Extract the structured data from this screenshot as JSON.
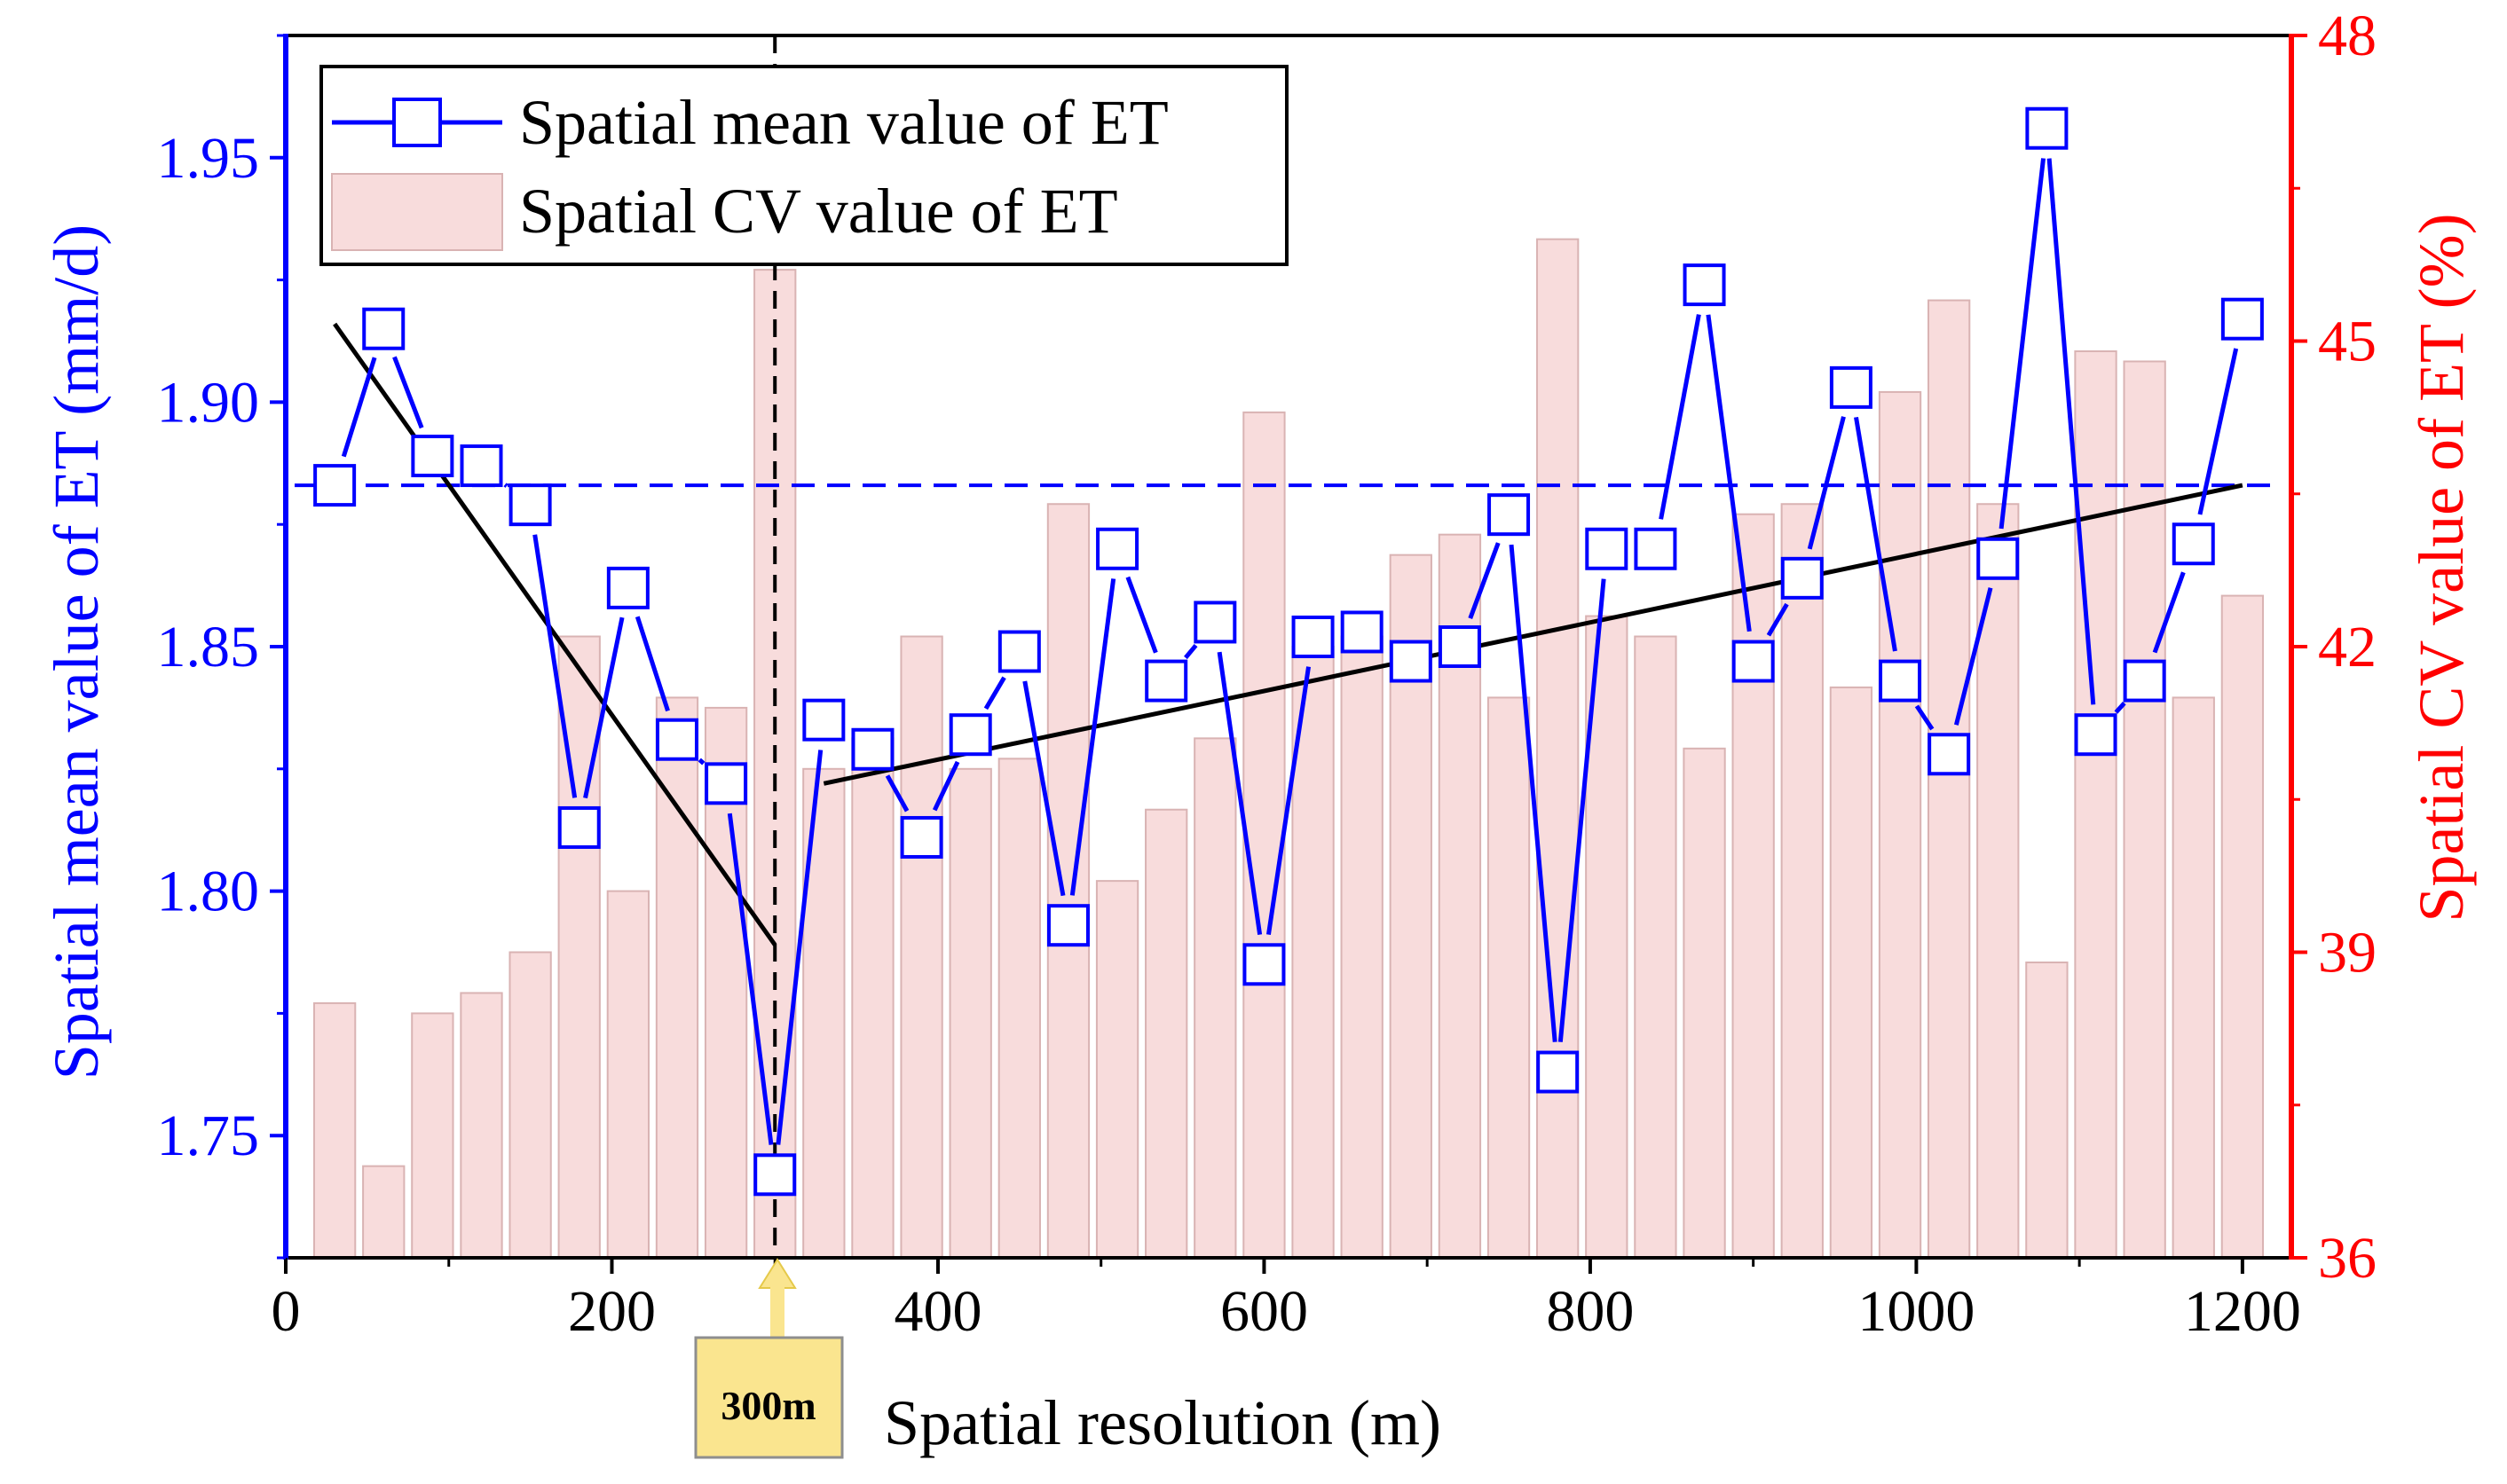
{
  "chart_data": {
    "type": "bar+line",
    "xlabel": "Spatial resolution (m)",
    "ylabel_left": "Spatial mean value of ET (mm/d)",
    "ylabel_right": "Spatial CV value of ET (%)",
    "xlim": [
      0,
      1230
    ],
    "ylim_left": [
      1.725,
      1.975
    ],
    "ylim_right": [
      36,
      48
    ],
    "x_ticks": [
      0,
      200,
      400,
      600,
      800,
      1000,
      1200
    ],
    "y_left_ticks": [
      "1.75",
      "1.80",
      "1.85",
      "1.90",
      "1.95"
    ],
    "y_right_ticks": [
      "36",
      "39",
      "42",
      "45",
      "48"
    ],
    "x": [
      30,
      60,
      90,
      120,
      150,
      180,
      210,
      240,
      270,
      300,
      330,
      360,
      390,
      420,
      450,
      480,
      510,
      540,
      570,
      600,
      630,
      660,
      690,
      720,
      750,
      780,
      810,
      840,
      870,
      900,
      930,
      960,
      990,
      1020,
      1050,
      1080,
      1110,
      1140,
      1170,
      1200
    ],
    "series": [
      {
        "name": "Spatial mean value of ET",
        "axis": "left",
        "type": "line-marker",
        "color": "#0000FF",
        "values": [
          1.883,
          1.915,
          1.889,
          1.887,
          1.879,
          1.813,
          1.862,
          1.831,
          1.822,
          1.742,
          1.835,
          1.829,
          1.811,
          1.832,
          1.849,
          1.793,
          1.87,
          1.843,
          1.855,
          1.785,
          1.852,
          1.853,
          1.847,
          1.85,
          1.877,
          1.763,
          1.87,
          1.87,
          1.924,
          1.847,
          1.864,
          1.903,
          1.843,
          1.828,
          1.868,
          1.956,
          1.832,
          1.843,
          1.871,
          1.917
        ]
      },
      {
        "name": "Spatial CV value of ET",
        "axis": "right",
        "type": "bar",
        "color": "#F8DCDC",
        "values": [
          38.5,
          36.9,
          38.4,
          38.6,
          39.0,
          42.1,
          39.6,
          41.5,
          41.4,
          45.7,
          40.8,
          41.1,
          42.1,
          40.8,
          40.9,
          43.4,
          39.7,
          40.4,
          41.1,
          44.3,
          42.0,
          42.1,
          42.9,
          43.1,
          41.5,
          46.0,
          42.3,
          42.1,
          41.0,
          43.3,
          43.4,
          41.6,
          44.5,
          45.4,
          43.4,
          38.9,
          44.9,
          44.8,
          41.5,
          42.5
        ]
      }
    ],
    "reference_line": {
      "axis": "left",
      "value": 1.883,
      "style": "dashed",
      "color": "#0000FF"
    },
    "vertical_marker": {
      "x": 300,
      "style": "dashed",
      "color": "#000000",
      "label": "300m"
    },
    "trend_lines": [
      {
        "color": "#000000",
        "x": [
          30,
          300
        ],
        "y": [
          1.916,
          1.789
        ]
      },
      {
        "color": "#000000",
        "x": [
          330,
          1200
        ],
        "y": [
          1.822,
          1.883
        ]
      }
    ],
    "legend": {
      "position": "top-left",
      "entries": [
        "Spatial mean value of ET",
        "Spatial CV value of ET"
      ]
    }
  },
  "colors": {
    "left_axis": "#0000FF",
    "right_axis": "#FF0000",
    "bar_fill": "#F8DCDC",
    "bar_stroke": "#D9B3B3",
    "callout_fill": "#FAE58F"
  }
}
